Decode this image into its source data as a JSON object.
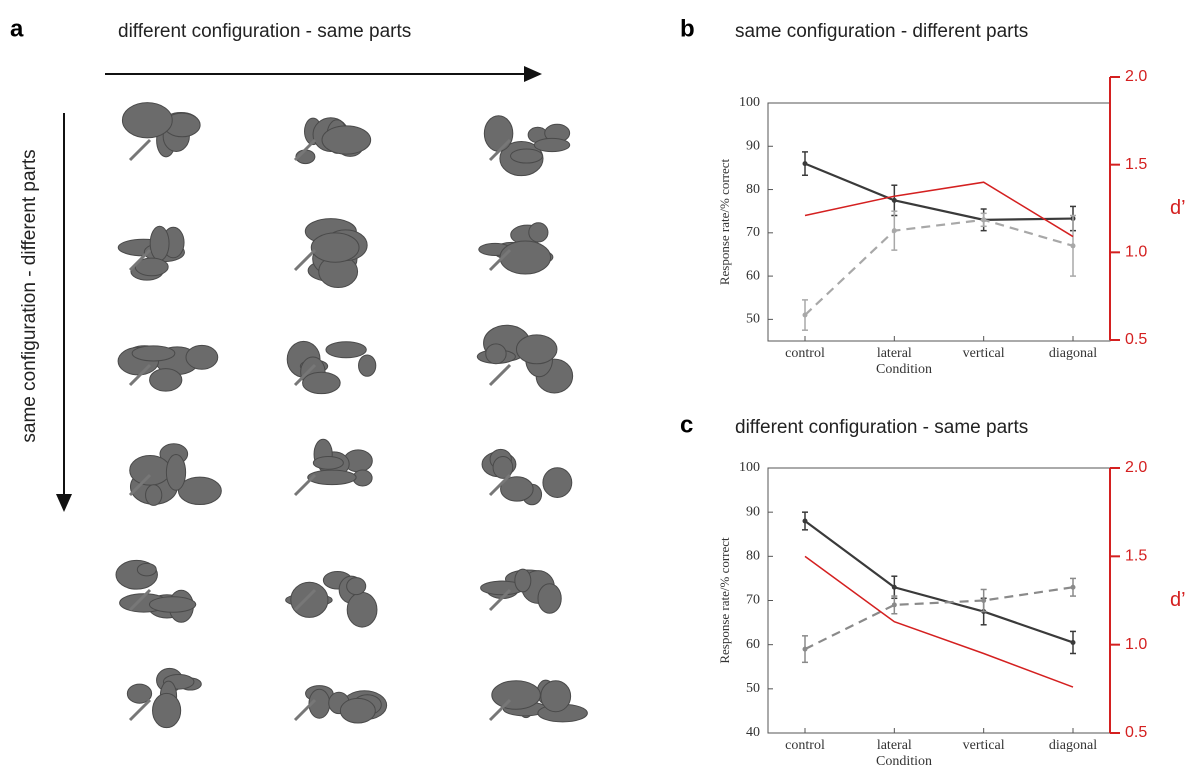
{
  "panels": {
    "a": {
      "label": "a",
      "top_label": "different configuration - same parts",
      "side_label": "same configuration - different parts"
    }
  },
  "chart_data": [
    {
      "type": "line",
      "panel_label": "b",
      "title": "same configuration - different parts",
      "categories": [
        "control",
        "lateral",
        "vertical",
        "diagonal"
      ],
      "xlabel": "Condition",
      "ylabel": "Response rate/% correct",
      "y2label": "d’",
      "ylim": [
        45,
        100
      ],
      "yticks": [
        50,
        60,
        70,
        80,
        90,
        100
      ],
      "y2lim": [
        0.5,
        2.0
      ],
      "y2ticks": [
        0.5,
        {
          "value": 1,
          "label": "1.0"
        },
        1.5,
        {
          "value": 2,
          "label": "2.0"
        }
      ],
      "y2color": "#d42020",
      "series": [
        {
          "color": "#3a3a3a",
          "dash": false,
          "values": [
            86,
            77.5,
            73,
            73.3
          ],
          "errors": [
            2.7,
            3.5,
            2.5,
            2.8
          ]
        },
        {
          "color": "#a8a8a8",
          "dash": true,
          "values": [
            51,
            70.5,
            73,
            67
          ],
          "errors": [
            3.5,
            4.5,
            1.5,
            7
          ]
        },
        {
          "color": "#d42020",
          "dash": false,
          "axis": "y2",
          "values": [
            1.21,
            1.32,
            1.4,
            1.09
          ]
        }
      ]
    },
    {
      "type": "line",
      "panel_label": "c",
      "title": "different configuration - same parts",
      "categories": [
        "control",
        "lateral",
        "vertical",
        "diagonal"
      ],
      "xlabel": "Condition",
      "ylabel": "Response rate/% correct",
      "y2label": "d’",
      "ylim": [
        40,
        100
      ],
      "yticks": [
        40,
        50,
        60,
        70,
        80,
        90,
        100
      ],
      "y2lim": [
        0.5,
        2.0
      ],
      "y2ticks": [
        0.5,
        {
          "value": 1,
          "label": "1.0"
        },
        1.5,
        {
          "value": 2,
          "label": "2.0"
        }
      ],
      "y2color": "#d42020",
      "series": [
        {
          "color": "#3a3a3a",
          "dash": false,
          "values": [
            88,
            73,
            67.5,
            60.5
          ],
          "errors": [
            2,
            2.5,
            3,
            2.5
          ]
        },
        {
          "color": "#8a8a8a",
          "dash": true,
          "values": [
            59,
            69,
            70,
            73
          ],
          "errors": [
            3,
            2,
            2.5,
            2
          ]
        },
        {
          "color": "#d42020",
          "dash": false,
          "axis": "y2",
          "values": [
            1.5,
            1.13,
            0.95,
            0.76
          ]
        }
      ]
    }
  ]
}
